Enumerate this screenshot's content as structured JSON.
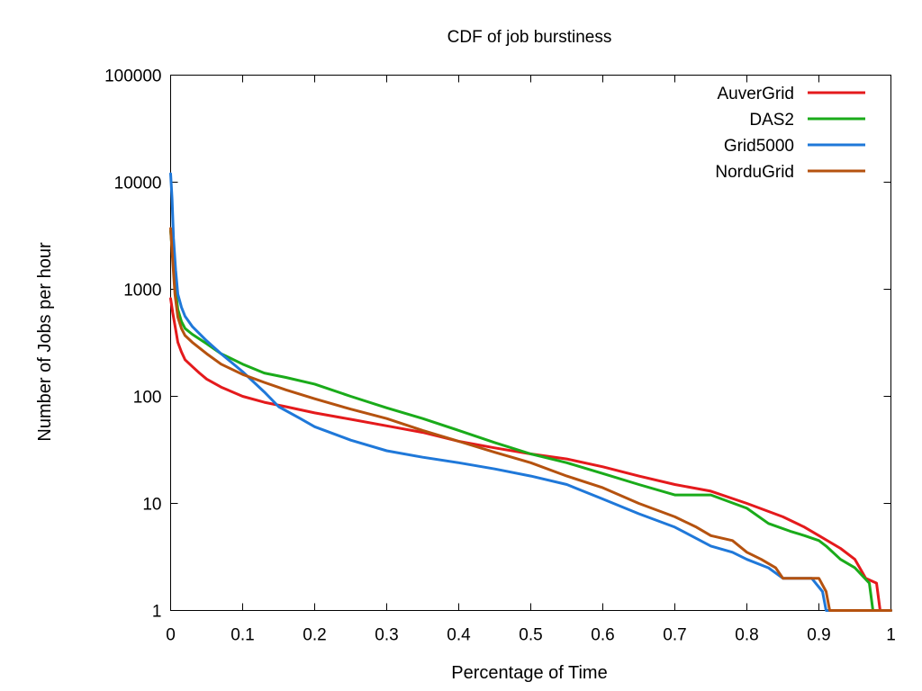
{
  "chart_data": {
    "type": "line",
    "title": "CDF of job burstiness",
    "xlabel": "Percentage of Time",
    "ylabel": "Number of Jobs per hour",
    "xlim": [
      0,
      1
    ],
    "ylim": [
      1,
      100000
    ],
    "yscale": "log",
    "grid": false,
    "legend_position": "top-right",
    "x_ticks": [
      {
        "value": 0,
        "label": "0"
      },
      {
        "value": 0.1,
        "label": "0.1"
      },
      {
        "value": 0.2,
        "label": "0.2"
      },
      {
        "value": 0.3,
        "label": "0.3"
      },
      {
        "value": 0.4,
        "label": "0.4"
      },
      {
        "value": 0.5,
        "label": "0.5"
      },
      {
        "value": 0.6,
        "label": "0.6"
      },
      {
        "value": 0.7,
        "label": "0.7"
      },
      {
        "value": 0.8,
        "label": "0.8"
      },
      {
        "value": 0.9,
        "label": "0.9"
      },
      {
        "value": 1,
        "label": "1"
      }
    ],
    "y_ticks": [
      {
        "value": 1,
        "label": "1"
      },
      {
        "value": 10,
        "label": "10"
      },
      {
        "value": 100,
        "label": "100"
      },
      {
        "value": 1000,
        "label": "1000"
      },
      {
        "value": 10000,
        "label": "10000"
      },
      {
        "value": 100000,
        "label": "100000"
      }
    ],
    "series": [
      {
        "name": "AuverGrid",
        "color": "#e41a1c",
        "points": [
          [
            0,
            820
          ],
          [
            0.003,
            600
          ],
          [
            0.007,
            420
          ],
          [
            0.01,
            320
          ],
          [
            0.015,
            260
          ],
          [
            0.02,
            220
          ],
          [
            0.03,
            190
          ],
          [
            0.04,
            165
          ],
          [
            0.05,
            145
          ],
          [
            0.07,
            122
          ],
          [
            0.1,
            100
          ],
          [
            0.13,
            88
          ],
          [
            0.16,
            80
          ],
          [
            0.2,
            70
          ],
          [
            0.25,
            61
          ],
          [
            0.3,
            53
          ],
          [
            0.35,
            46
          ],
          [
            0.4,
            38
          ],
          [
            0.45,
            33
          ],
          [
            0.5,
            29
          ],
          [
            0.55,
            26
          ],
          [
            0.6,
            22
          ],
          [
            0.65,
            18
          ],
          [
            0.7,
            15
          ],
          [
            0.75,
            13
          ],
          [
            0.8,
            10
          ],
          [
            0.85,
            7.5
          ],
          [
            0.88,
            6
          ],
          [
            0.9,
            5
          ],
          [
            0.93,
            3.8
          ],
          [
            0.95,
            3
          ],
          [
            0.965,
            2
          ],
          [
            0.98,
            1.8
          ],
          [
            0.985,
            1
          ],
          [
            1,
            1
          ]
        ]
      },
      {
        "name": "DAS2",
        "color": "#1aab1a",
        "points": [
          [
            0,
            3500
          ],
          [
            0.003,
            2000
          ],
          [
            0.006,
            1100
          ],
          [
            0.01,
            650
          ],
          [
            0.015,
            500
          ],
          [
            0.02,
            430
          ],
          [
            0.03,
            380
          ],
          [
            0.05,
            310
          ],
          [
            0.07,
            250
          ],
          [
            0.1,
            200
          ],
          [
            0.13,
            165
          ],
          [
            0.16,
            150
          ],
          [
            0.2,
            130
          ],
          [
            0.25,
            100
          ],
          [
            0.3,
            78
          ],
          [
            0.35,
            62
          ],
          [
            0.4,
            48
          ],
          [
            0.45,
            37
          ],
          [
            0.5,
            29
          ],
          [
            0.55,
            24
          ],
          [
            0.6,
            19
          ],
          [
            0.65,
            15
          ],
          [
            0.7,
            12
          ],
          [
            0.75,
            12
          ],
          [
            0.8,
            9
          ],
          [
            0.83,
            6.5
          ],
          [
            0.86,
            5.5
          ],
          [
            0.88,
            5
          ],
          [
            0.9,
            4.5
          ],
          [
            0.91,
            4
          ],
          [
            0.93,
            3
          ],
          [
            0.95,
            2.5
          ],
          [
            0.97,
            1.8
          ],
          [
            0.975,
            1
          ],
          [
            1,
            1
          ]
        ]
      },
      {
        "name": "Grid5000",
        "color": "#1f78d9",
        "points": [
          [
            0,
            12000
          ],
          [
            0.002,
            7000
          ],
          [
            0.004,
            3000
          ],
          [
            0.007,
            1500
          ],
          [
            0.01,
            900
          ],
          [
            0.015,
            680
          ],
          [
            0.02,
            560
          ],
          [
            0.03,
            450
          ],
          [
            0.05,
            330
          ],
          [
            0.07,
            250
          ],
          [
            0.1,
            170
          ],
          [
            0.13,
            110
          ],
          [
            0.15,
            80
          ],
          [
            0.18,
            62
          ],
          [
            0.2,
            52
          ],
          [
            0.25,
            39
          ],
          [
            0.3,
            31
          ],
          [
            0.35,
            27
          ],
          [
            0.4,
            24
          ],
          [
            0.45,
            21
          ],
          [
            0.5,
            18
          ],
          [
            0.55,
            15
          ],
          [
            0.6,
            11
          ],
          [
            0.65,
            8
          ],
          [
            0.7,
            6
          ],
          [
            0.75,
            4
          ],
          [
            0.78,
            3.5
          ],
          [
            0.8,
            3
          ],
          [
            0.83,
            2.5
          ],
          [
            0.85,
            2
          ],
          [
            0.89,
            2
          ],
          [
            0.905,
            1.5
          ],
          [
            0.91,
            1
          ],
          [
            1,
            1
          ]
        ]
      },
      {
        "name": "NorduGrid",
        "color": "#b5520f",
        "points": [
          [
            0,
            3700
          ],
          [
            0.003,
            1800
          ],
          [
            0.006,
            900
          ],
          [
            0.01,
            550
          ],
          [
            0.015,
            430
          ],
          [
            0.02,
            370
          ],
          [
            0.03,
            320
          ],
          [
            0.05,
            250
          ],
          [
            0.07,
            200
          ],
          [
            0.1,
            160
          ],
          [
            0.13,
            135
          ],
          [
            0.16,
            115
          ],
          [
            0.2,
            95
          ],
          [
            0.25,
            76
          ],
          [
            0.3,
            62
          ],
          [
            0.35,
            48
          ],
          [
            0.4,
            38
          ],
          [
            0.45,
            30
          ],
          [
            0.5,
            24
          ],
          [
            0.55,
            18
          ],
          [
            0.6,
            14
          ],
          [
            0.65,
            10
          ],
          [
            0.7,
            7.5
          ],
          [
            0.73,
            6
          ],
          [
            0.75,
            5
          ],
          [
            0.78,
            4.5
          ],
          [
            0.8,
            3.5
          ],
          [
            0.82,
            3
          ],
          [
            0.84,
            2.5
          ],
          [
            0.85,
            2
          ],
          [
            0.9,
            2
          ],
          [
            0.91,
            1.5
          ],
          [
            0.915,
            1
          ],
          [
            1,
            1
          ]
        ]
      }
    ]
  }
}
